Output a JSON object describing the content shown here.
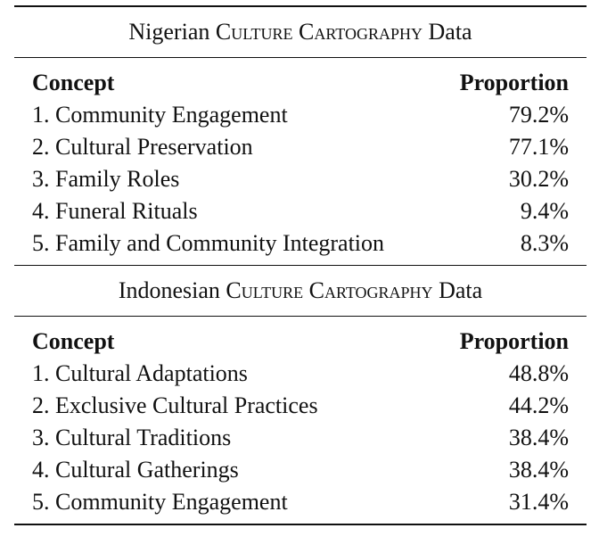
{
  "sections": [
    {
      "caption_prefix": "Nigerian",
      "caption_sc": "Culture Cartography",
      "caption_suffix": "Data",
      "header": {
        "concept": "Concept",
        "proportion": "Proportion"
      },
      "rows": [
        {
          "concept": "1. Community Engagement",
          "proportion": "79.2%"
        },
        {
          "concept": "2. Cultural Preservation",
          "proportion": "77.1%"
        },
        {
          "concept": "3. Family Roles",
          "proportion": "30.2%"
        },
        {
          "concept": "4. Funeral Rituals",
          "proportion": "9.4%"
        },
        {
          "concept": "5. Family and Community Integration",
          "proportion": "8.3%"
        }
      ]
    },
    {
      "caption_prefix": "Indonesian",
      "caption_sc": "Culture Cartography",
      "caption_suffix": "Data",
      "header": {
        "concept": "Concept",
        "proportion": "Proportion"
      },
      "rows": [
        {
          "concept": "1. Cultural Adaptations",
          "proportion": "48.8%"
        },
        {
          "concept": "2. Exclusive Cultural Practices",
          "proportion": "44.2%"
        },
        {
          "concept": "3. Cultural Traditions",
          "proportion": "38.4%"
        },
        {
          "concept": "4. Cultural Gatherings",
          "proportion": "38.4%"
        },
        {
          "concept": "5. Community Engagement",
          "proportion": "31.4%"
        }
      ]
    }
  ]
}
